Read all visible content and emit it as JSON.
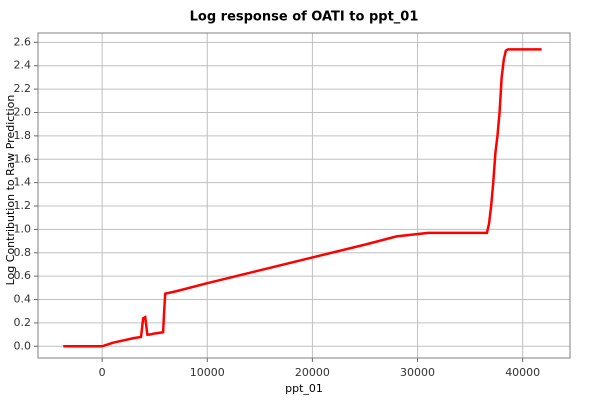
{
  "chart_data": {
    "type": "line",
    "title": "Log response of OATI to ppt_01",
    "x_label": "ppt_01",
    "y_label": "Log Contribution to Raw Prediction",
    "series": [
      {
        "color": "#ff0000",
        "x": [
          -3700,
          -2000,
          0,
          1000,
          2000,
          3000,
          3700,
          3900,
          4100,
          4300,
          4500,
          5000,
          5800,
          5900,
          6000,
          7000,
          10000,
          15000,
          20000,
          25000,
          28000,
          31000,
          34000,
          36600,
          36800,
          37000,
          37200,
          37400,
          37600,
          37800,
          38000,
          38200,
          38400,
          38600,
          40000,
          41800
        ],
        "values": [
          0,
          0,
          0,
          0.03,
          0.05,
          0.07,
          0.08,
          0.24,
          0.25,
          0.1,
          0.1,
          0.11,
          0.12,
          0.3,
          0.45,
          0.47,
          0.54,
          0.65,
          0.76,
          0.87,
          0.94,
          0.97,
          0.97,
          0.97,
          1.05,
          1.2,
          1.4,
          1.65,
          1.8,
          2.0,
          2.3,
          2.45,
          2.53,
          2.54,
          2.54,
          2.54
        ]
      }
    ],
    "xlim": [
      -6100,
      44500
    ],
    "ylim": [
      -0.1,
      2.68
    ],
    "xticks": [
      0,
      10000,
      20000,
      30000,
      40000
    ],
    "yticks": [
      {
        "value": 0,
        "label": "0.0"
      },
      0.2,
      0.4,
      0.6,
      0.8,
      {
        "value": 1,
        "label": "1.0"
      },
      1.2,
      1.4,
      1.6,
      1.8,
      {
        "value": 2,
        "label": "2.0"
      },
      2.2,
      2.4,
      2.6
    ],
    "grid": true
  }
}
